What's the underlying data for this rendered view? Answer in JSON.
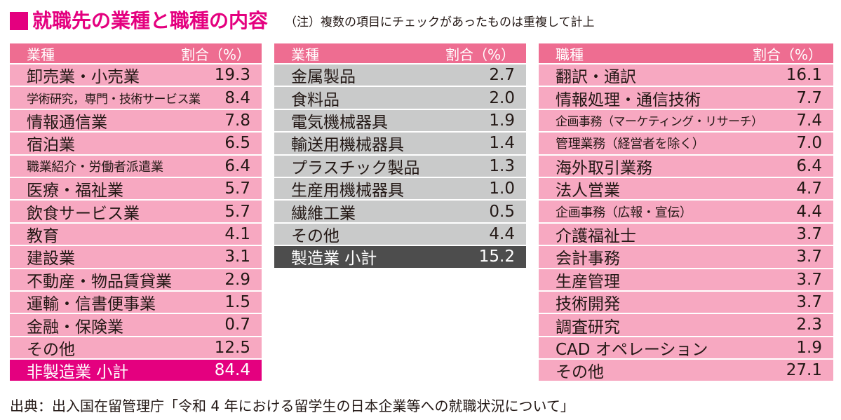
{
  "title": "就職先の業種と職種の内容",
  "note": "（注）複数の項目にチェックがあったものは重複して計上",
  "left_table": {
    "header_label": "業種",
    "header_value": "割合（%）",
    "rows": [
      {
        "label": "卸売業・小売業",
        "value": "19.3"
      },
      {
        "label": "学術研究，専門・技術サービス業",
        "value": "8.4"
      },
      {
        "label": "情報通信業",
        "value": "7.8"
      },
      {
        "label": "宿泊業",
        "value": "6.5"
      },
      {
        "label": "職業紹介・労働者派遣業",
        "value": "6.4"
      },
      {
        "label": "医療・福祉業",
        "value": "5.7"
      },
      {
        "label": "飲食サービス業",
        "value": "5.7"
      },
      {
        "label": "教育",
        "value": "4.1"
      },
      {
        "label": "建設業",
        "value": "3.1"
      },
      {
        "label": "不動産・物品賃貸業",
        "value": "2.9"
      },
      {
        "label": "運輸・信書便事業",
        "value": "1.5"
      },
      {
        "label": "金融・保険業",
        "value": "0.7"
      },
      {
        "label": "その他",
        "value": "12.5"
      }
    ],
    "total_label": "非製造業 小計",
    "total_value": "84.4"
  },
  "mid_table": {
    "header_label": "業種",
    "header_value": "割合（%）",
    "rows": [
      {
        "label": "金属製品",
        "value": "2.7"
      },
      {
        "label": "食料品",
        "value": "2.0"
      },
      {
        "label": "電気機械器具",
        "value": "1.9"
      },
      {
        "label": "輸送用機械器具",
        "value": "1.4"
      },
      {
        "label": "プラスチック製品",
        "value": "1.3"
      },
      {
        "label": "生産用機械器具",
        "value": "1.0"
      },
      {
        "label": "繊維工業",
        "value": "0.5"
      },
      {
        "label": "その他",
        "value": "4.4"
      }
    ],
    "total_label": "製造業 小計",
    "total_value": "15.2"
  },
  "right_table": {
    "header_label": "職種",
    "header_value": "割合（%）",
    "rows": [
      {
        "label": "翻訳・通訳",
        "value": "16.1"
      },
      {
        "label": "情報処理・通信技術",
        "value": "7.7"
      },
      {
        "label": "企画事務（マーケティング・リサーチ）",
        "value": "7.4"
      },
      {
        "label": "管理業務（経営者を除く）",
        "value": "7.0"
      },
      {
        "label": "海外取引業務",
        "value": "6.4"
      },
      {
        "label": "法人営業",
        "value": "4.7"
      },
      {
        "label": "企画事務（広報・宣伝）",
        "value": "4.4"
      },
      {
        "label": "介護福祉士",
        "value": "3.7"
      },
      {
        "label": "会計事務",
        "value": "3.7"
      },
      {
        "label": "生産管理",
        "value": "3.7"
      },
      {
        "label": "技術開発",
        "value": "3.7"
      },
      {
        "label": "調査研究",
        "value": "2.3"
      },
      {
        "label": "CAD オペレーション",
        "value": "1.9"
      },
      {
        "label": "その他",
        "value": "27.1"
      }
    ]
  },
  "source": "出典：出入国在留管理庁「令和 4 年における留学生の日本企業等への就職状況について」"
}
